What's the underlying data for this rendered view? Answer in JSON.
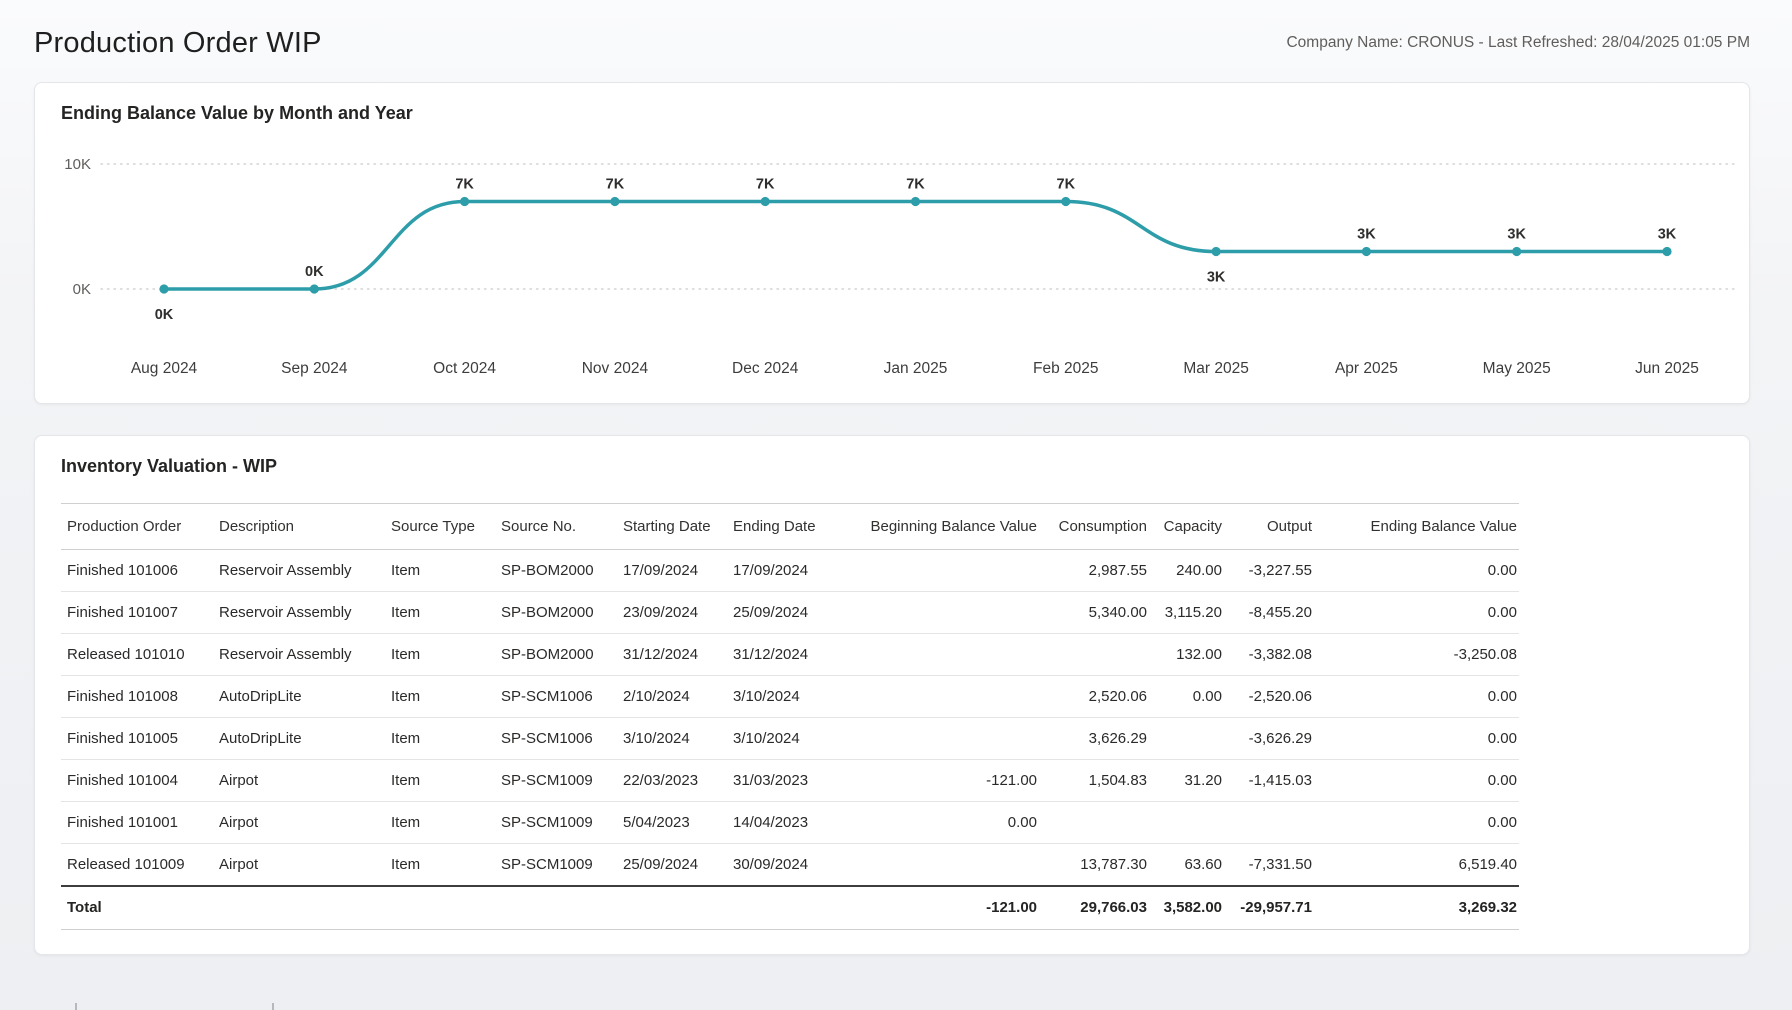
{
  "page": {
    "title": "Production Order WIP",
    "meta": "Company Name: CRONUS - Last Refreshed: 28/04/2025 01:05 PM"
  },
  "chart_data": {
    "type": "line",
    "title": "Ending Balance Value by Month and Year",
    "categories": [
      "Aug 2024",
      "Sep 2024",
      "Oct 2024",
      "Nov 2024",
      "Dec 2024",
      "Jan 2025",
      "Feb 2025",
      "Mar 2025",
      "Apr 2025",
      "May 2025",
      "Jun 2025"
    ],
    "values": [
      0,
      0,
      7000,
      7000,
      7000,
      7000,
      7000,
      3000,
      3000,
      3000,
      3000
    ],
    "point_labels": [
      "0K",
      "0K",
      "7K",
      "7K",
      "7K",
      "7K",
      "7K",
      "3K",
      "3K",
      "3K",
      "3K"
    ],
    "label_positions": [
      "below",
      "above",
      "above",
      "above",
      "above",
      "above",
      "above",
      "below",
      "above",
      "above",
      "above"
    ],
    "xlabel": "",
    "ylabel": "",
    "ylim": [
      0,
      10000
    ],
    "y_ticks": [
      {
        "label": "10K",
        "value": 10000
      },
      {
        "label": "0K",
        "value": 0
      }
    ],
    "grid": "dotted",
    "legend": "none",
    "line_color": "#2e9daa",
    "grid_color": "#d4d4d4",
    "axis_text_color": "#605e5c",
    "label_text_color": "#2f2e2d"
  },
  "table": {
    "title": "Inventory Valuation - WIP",
    "columns": [
      {
        "label": "Production Order",
        "align": "left"
      },
      {
        "label": "Description",
        "align": "left"
      },
      {
        "label": "Source Type",
        "align": "left"
      },
      {
        "label": "Source No.",
        "align": "left"
      },
      {
        "label": "Starting Date",
        "align": "left"
      },
      {
        "label": "Ending Date",
        "align": "left"
      },
      {
        "label": "Beginning Balance Value",
        "align": "right"
      },
      {
        "label": "Consumption",
        "align": "right"
      },
      {
        "label": "Capacity",
        "align": "right"
      },
      {
        "label": "Output",
        "align": "right"
      },
      {
        "label": "Ending Balance Value",
        "align": "right"
      }
    ],
    "rows": [
      [
        "Finished 101006",
        "Reservoir Assembly",
        "Item",
        "SP-BOM2000",
        "17/09/2024",
        "17/09/2024",
        "",
        "2,987.55",
        "240.00",
        "-3,227.55",
        "0.00"
      ],
      [
        "Finished 101007",
        "Reservoir Assembly",
        "Item",
        "SP-BOM2000",
        "23/09/2024",
        "25/09/2024",
        "",
        "5,340.00",
        "3,115.20",
        "-8,455.20",
        "0.00"
      ],
      [
        "Released 101010",
        "Reservoir Assembly",
        "Item",
        "SP-BOM2000",
        "31/12/2024",
        "31/12/2024",
        "",
        "",
        "132.00",
        "-3,382.08",
        "-3,250.08"
      ],
      [
        "Finished 101008",
        "AutoDripLite",
        "Item",
        "SP-SCM1006",
        "2/10/2024",
        "3/10/2024",
        "",
        "2,520.06",
        "0.00",
        "-2,520.06",
        "0.00"
      ],
      [
        "Finished 101005",
        "AutoDripLite",
        "Item",
        "SP-SCM1006",
        "3/10/2024",
        "3/10/2024",
        "",
        "3,626.29",
        "",
        "-3,626.29",
        "0.00"
      ],
      [
        "Finished 101004",
        "Airpot",
        "Item",
        "SP-SCM1009",
        "22/03/2023",
        "31/03/2023",
        "-121.00",
        "1,504.83",
        "31.20",
        "-1,415.03",
        "0.00"
      ],
      [
        "Finished 101001",
        "Airpot",
        "Item",
        "SP-SCM1009",
        "5/04/2023",
        "14/04/2023",
        "0.00",
        "",
        "",
        "",
        "0.00"
      ],
      [
        "Released 101009",
        "Airpot",
        "Item",
        "SP-SCM1009",
        "25/09/2024",
        "30/09/2024",
        "",
        "13,787.30",
        "63.60",
        "-7,331.50",
        "6,519.40"
      ]
    ],
    "total_row": [
      "Total",
      "",
      "",
      "",
      "",
      "",
      "-121.00",
      "29,766.03",
      "3,582.00",
      "-29,957.71",
      "3,269.32"
    ]
  }
}
